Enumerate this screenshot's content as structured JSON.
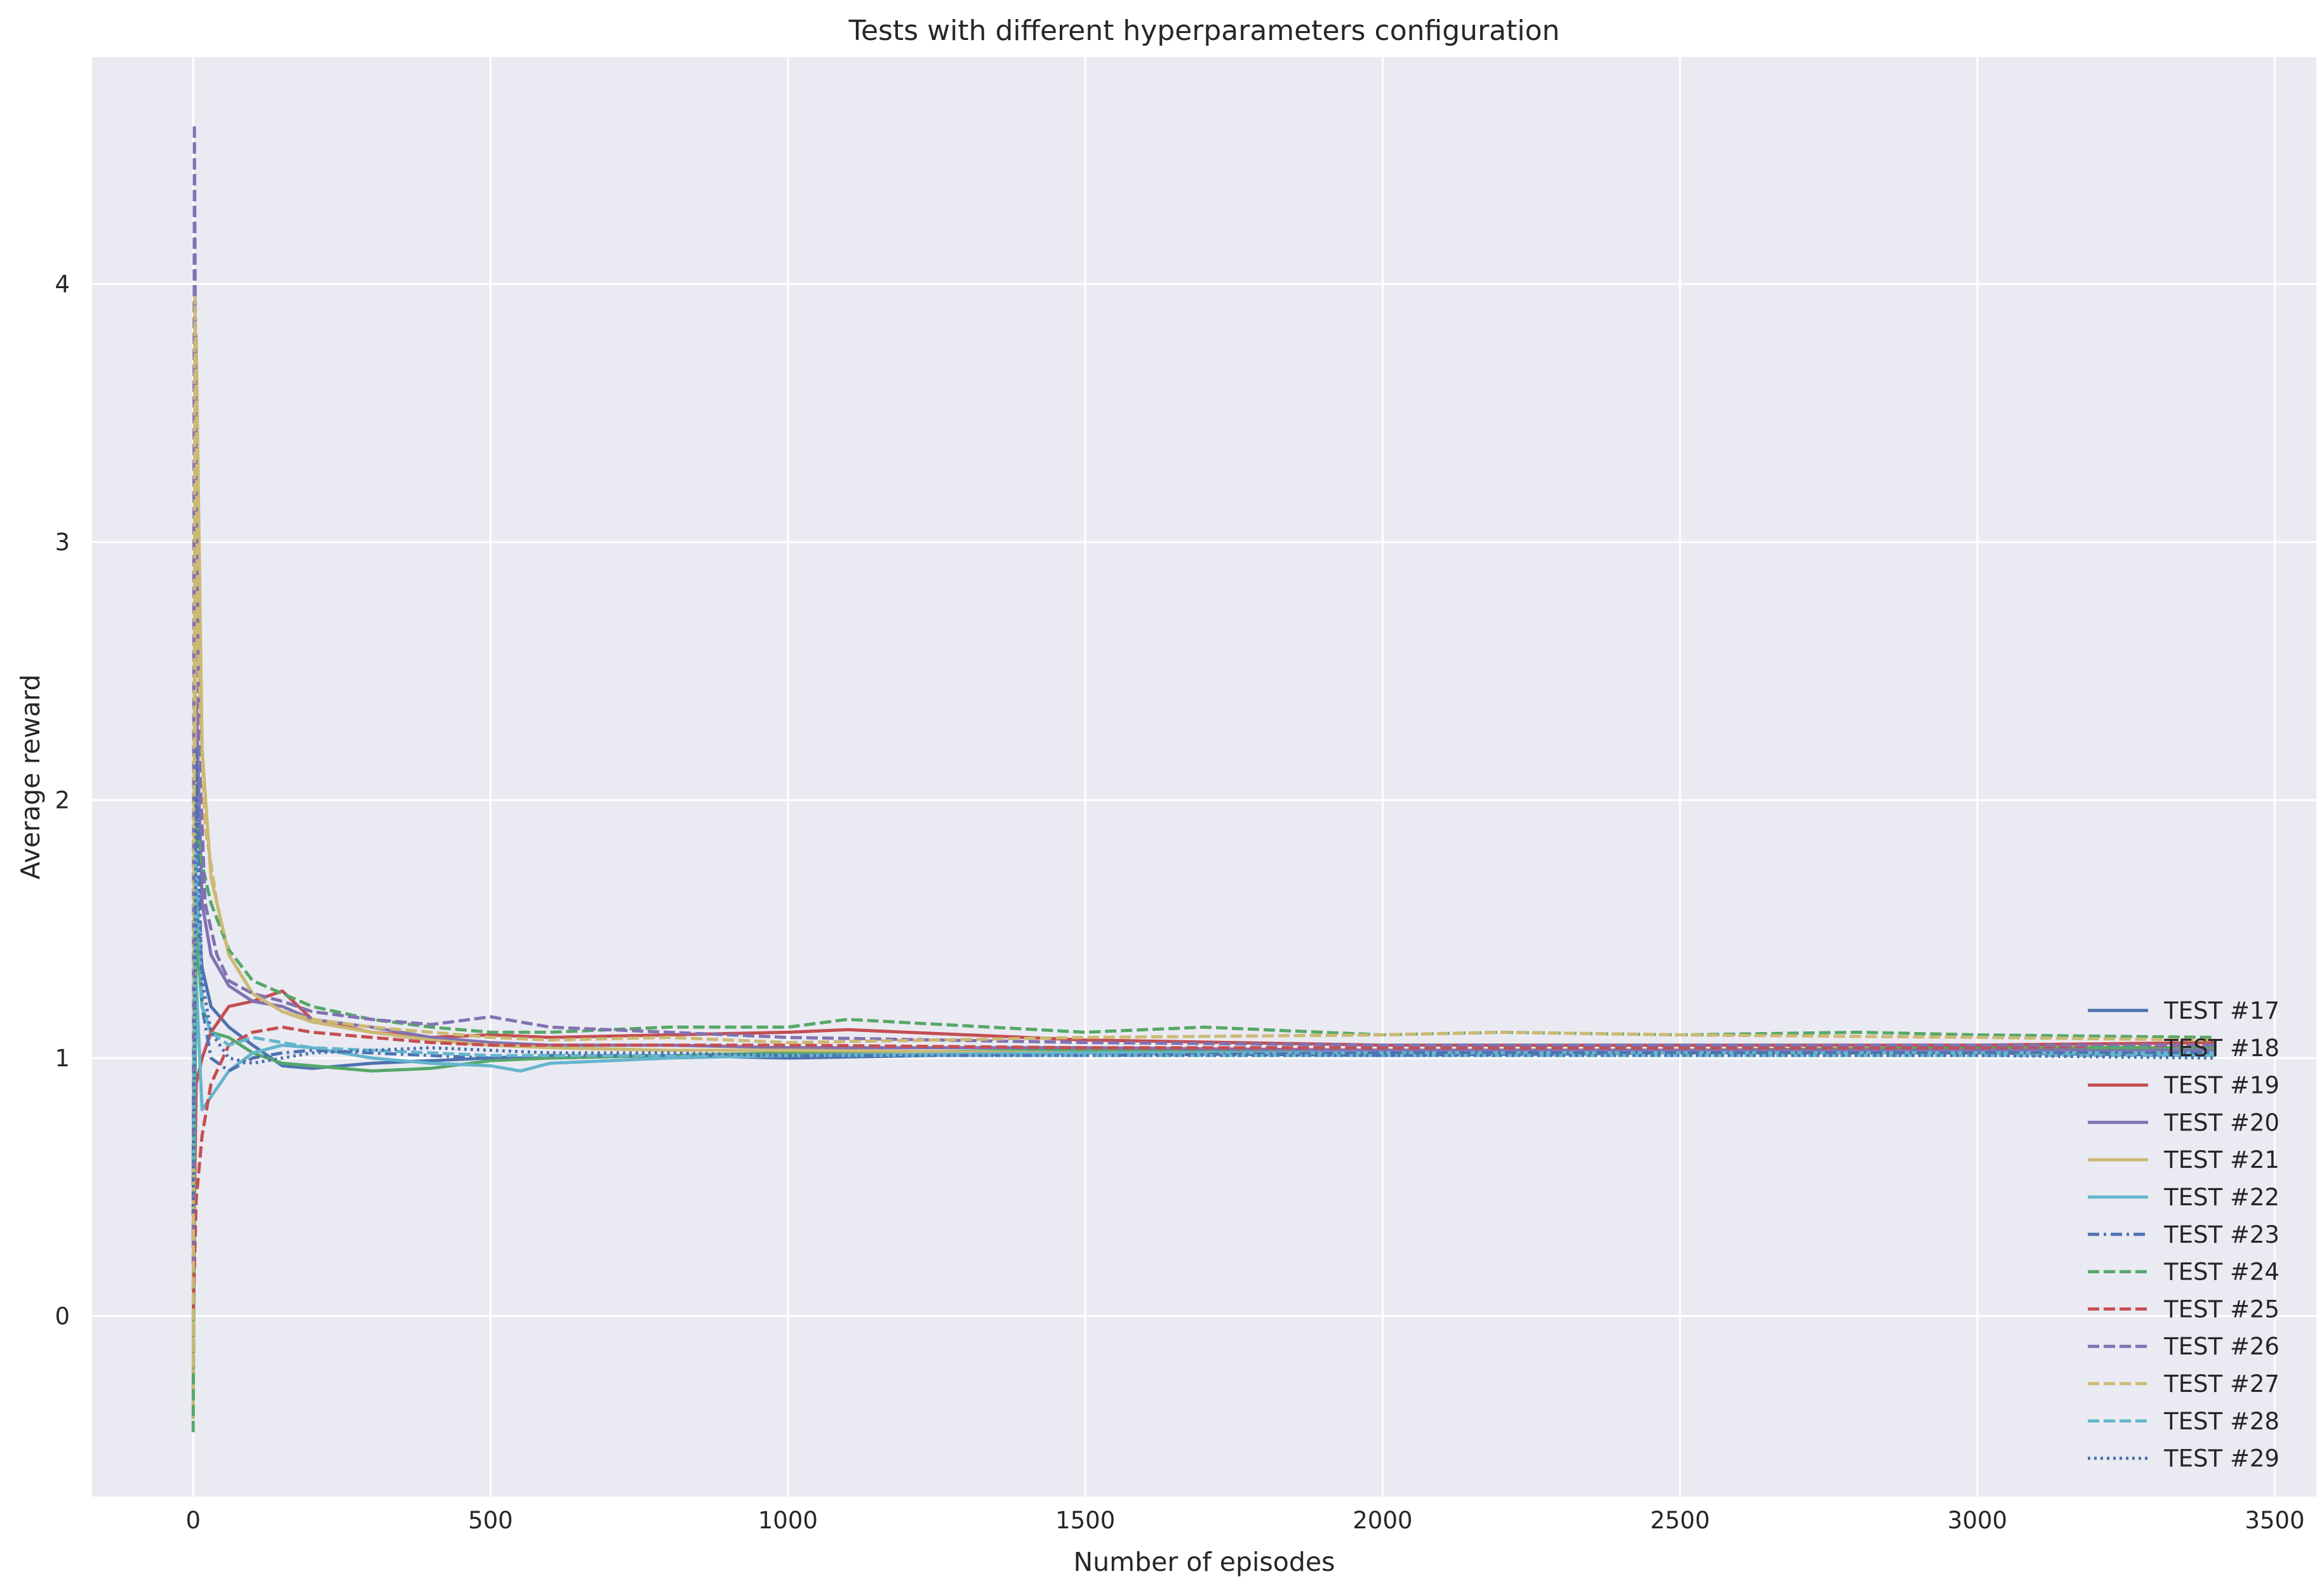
{
  "chart_data": {
    "type": "line",
    "title": "Tests with different hyperparameters configuration",
    "xlabel": "Number of episodes",
    "ylabel": "Average reward",
    "xlim": [
      -170,
      3570
    ],
    "ylim": [
      -0.7,
      4.88
    ],
    "xticks": [
      0,
      500,
      1000,
      1500,
      2000,
      2500,
      3000,
      3500
    ],
    "yticks": [
      0,
      1,
      2,
      3,
      4
    ],
    "grid": true,
    "legend_position": "lower-right",
    "series": [
      {
        "name": "TEST #17",
        "color": "#4c72b0",
        "dash": "solid",
        "x": [
          0,
          5,
          15,
          30,
          60,
          100,
          150,
          200,
          300,
          400,
          500,
          600,
          800,
          1000,
          1500,
          2000,
          2500,
          3000,
          3400
        ],
        "y": [
          0.6,
          1.6,
          1.35,
          1.2,
          1.12,
          1.05,
          0.97,
          0.96,
          0.98,
          0.99,
          1.0,
          1.0,
          1.01,
          1.0,
          1.02,
          1.01,
          1.02,
          1.02,
          1.01
        ]
      },
      {
        "name": "TEST #18",
        "color": "#55a868",
        "dash": "solid",
        "x": [
          0,
          5,
          15,
          30,
          60,
          100,
          150,
          200,
          300,
          400,
          500,
          600,
          800,
          1000,
          1500,
          2000,
          2500,
          3000,
          3400
        ],
        "y": [
          -0.3,
          1.5,
          1.2,
          1.1,
          1.08,
          1.02,
          0.98,
          0.97,
          0.95,
          0.96,
          0.99,
          1.0,
          1.01,
          1.02,
          1.03,
          1.03,
          1.03,
          1.04,
          1.04
        ]
      },
      {
        "name": "TEST #19",
        "color": "#c44e52",
        "dash": "solid",
        "x": [
          0,
          5,
          15,
          30,
          60,
          100,
          150,
          200,
          300,
          400,
          500,
          600,
          800,
          1000,
          1100,
          1500,
          2000,
          2500,
          3000,
          3400
        ],
        "y": [
          0.1,
          0.9,
          1.0,
          1.1,
          1.2,
          1.22,
          1.26,
          1.15,
          1.1,
          1.08,
          1.09,
          1.08,
          1.09,
          1.1,
          1.11,
          1.07,
          1.05,
          1.05,
          1.05,
          1.06
        ]
      },
      {
        "name": "TEST #20",
        "color": "#8172b2",
        "dash": "solid",
        "x": [
          0,
          5,
          15,
          30,
          60,
          100,
          150,
          200,
          300,
          400,
          500,
          600,
          800,
          1000,
          1500,
          2000,
          2500,
          3000,
          3400
        ],
        "y": [
          0.5,
          2.4,
          1.6,
          1.4,
          1.28,
          1.22,
          1.2,
          1.15,
          1.12,
          1.08,
          1.06,
          1.05,
          1.05,
          1.04,
          1.04,
          1.03,
          1.03,
          1.03,
          1.03
        ]
      },
      {
        "name": "TEST #21",
        "color": "#ccb974",
        "dash": "solid",
        "x": [
          0,
          5,
          15,
          30,
          60,
          100,
          150,
          200,
          300,
          400,
          500,
          600,
          800,
          1000,
          1500,
          2000,
          2500,
          3000,
          3400
        ],
        "y": [
          -0.4,
          3.8,
          2.2,
          1.7,
          1.4,
          1.25,
          1.18,
          1.14,
          1.1,
          1.07,
          1.05,
          1.04,
          1.03,
          1.03,
          1.02,
          1.02,
          1.02,
          1.02,
          1.02
        ]
      },
      {
        "name": "TEST #22",
        "color": "#64b5cd",
        "dash": "solid",
        "x": [
          0,
          5,
          15,
          30,
          60,
          100,
          150,
          200,
          300,
          400,
          500,
          550,
          600,
          800,
          1000,
          1500,
          2000,
          2500,
          3000,
          3400
        ],
        "y": [
          0.4,
          1.3,
          0.8,
          0.85,
          0.95,
          1.02,
          1.05,
          1.04,
          1.0,
          0.98,
          0.97,
          0.95,
          0.98,
          1.0,
          1.01,
          1.02,
          1.02,
          1.02,
          1.02,
          1.02
        ]
      },
      {
        "name": "TEST #23",
        "color": "#4c72b0",
        "dash": "dashdot",
        "x": [
          0,
          5,
          15,
          30,
          60,
          100,
          150,
          200,
          300,
          400,
          500,
          600,
          800,
          1000,
          1500,
          2000,
          2500,
          3000,
          3400
        ],
        "y": [
          0.3,
          2.2,
          1.2,
          1.0,
          0.95,
          1.0,
          1.02,
          1.03,
          1.02,
          1.01,
          1.0,
          1.01,
          1.01,
          1.01,
          1.01,
          1.02,
          1.02,
          1.02,
          1.02
        ]
      },
      {
        "name": "TEST #24",
        "color": "#55a868",
        "dash": "dashed",
        "x": [
          0,
          5,
          15,
          30,
          60,
          100,
          150,
          200,
          300,
          400,
          500,
          600,
          800,
          1000,
          1100,
          1500,
          1700,
          2000,
          2200,
          2500,
          2800,
          3000,
          3400
        ],
        "y": [
          -0.45,
          1.9,
          1.75,
          1.6,
          1.42,
          1.3,
          1.25,
          1.2,
          1.15,
          1.12,
          1.1,
          1.1,
          1.12,
          1.12,
          1.15,
          1.1,
          1.12,
          1.09,
          1.1,
          1.09,
          1.1,
          1.09,
          1.08
        ]
      },
      {
        "name": "TEST #25",
        "color": "#c44e52",
        "dash": "dashed",
        "x": [
          0,
          5,
          15,
          30,
          60,
          100,
          150,
          200,
          300,
          400,
          500,
          600,
          800,
          1000,
          1500,
          2000,
          2500,
          3000,
          3400
        ],
        "y": [
          0.0,
          0.45,
          0.7,
          0.9,
          1.05,
          1.1,
          1.12,
          1.1,
          1.08,
          1.06,
          1.05,
          1.05,
          1.05,
          1.05,
          1.04,
          1.04,
          1.04,
          1.04,
          1.05
        ]
      },
      {
        "name": "TEST #26",
        "color": "#8172b2",
        "dash": "dashed",
        "x": [
          0,
          2,
          5,
          10,
          20,
          40,
          60,
          100,
          150,
          200,
          300,
          400,
          500,
          600,
          800,
          1000,
          1500,
          2000,
          2500,
          3000,
          3400
        ],
        "y": [
          0.2,
          4.62,
          3.2,
          2.2,
          1.6,
          1.4,
          1.3,
          1.25,
          1.22,
          1.18,
          1.15,
          1.13,
          1.16,
          1.12,
          1.1,
          1.08,
          1.06,
          1.05,
          1.05,
          1.05,
          1.05
        ]
      },
      {
        "name": "TEST #27",
        "color": "#ccb974",
        "dash": "dashed",
        "x": [
          0,
          3,
          8,
          20,
          40,
          60,
          100,
          150,
          200,
          300,
          400,
          500,
          600,
          800,
          1000,
          1500,
          2000,
          2200,
          2500,
          3000,
          3400
        ],
        "y": [
          -0.2,
          3.95,
          2.6,
          1.9,
          1.6,
          1.4,
          1.25,
          1.18,
          1.15,
          1.12,
          1.1,
          1.08,
          1.07,
          1.08,
          1.06,
          1.08,
          1.09,
          1.1,
          1.09,
          1.08,
          1.07
        ]
      },
      {
        "name": "TEST #28",
        "color": "#64b5cd",
        "dash": "dashed",
        "x": [
          0,
          5,
          15,
          30,
          60,
          100,
          150,
          200,
          300,
          400,
          500,
          600,
          800,
          1000,
          1500,
          2000,
          2500,
          3000,
          3400
        ],
        "y": [
          0.6,
          1.8,
          1.2,
          1.1,
          1.05,
          1.08,
          1.06,
          1.04,
          1.03,
          1.02,
          1.01,
          1.01,
          1.01,
          1.01,
          1.01,
          1.01,
          1.01,
          1.01,
          1.01
        ]
      },
      {
        "name": "TEST #29",
        "color": "#4c72b0",
        "dash": "dotted",
        "x": [
          0,
          5,
          15,
          30,
          60,
          100,
          150,
          200,
          300,
          400,
          500,
          600,
          800,
          1000,
          1500,
          2000,
          2500,
          3000,
          3400
        ],
        "y": [
          0.4,
          2.0,
          1.3,
          1.1,
          1.0,
          0.98,
          1.0,
          1.02,
          1.03,
          1.04,
          1.03,
          1.02,
          1.02,
          1.01,
          1.01,
          1.01,
          1.01,
          1.01,
          1.0
        ]
      }
    ]
  }
}
